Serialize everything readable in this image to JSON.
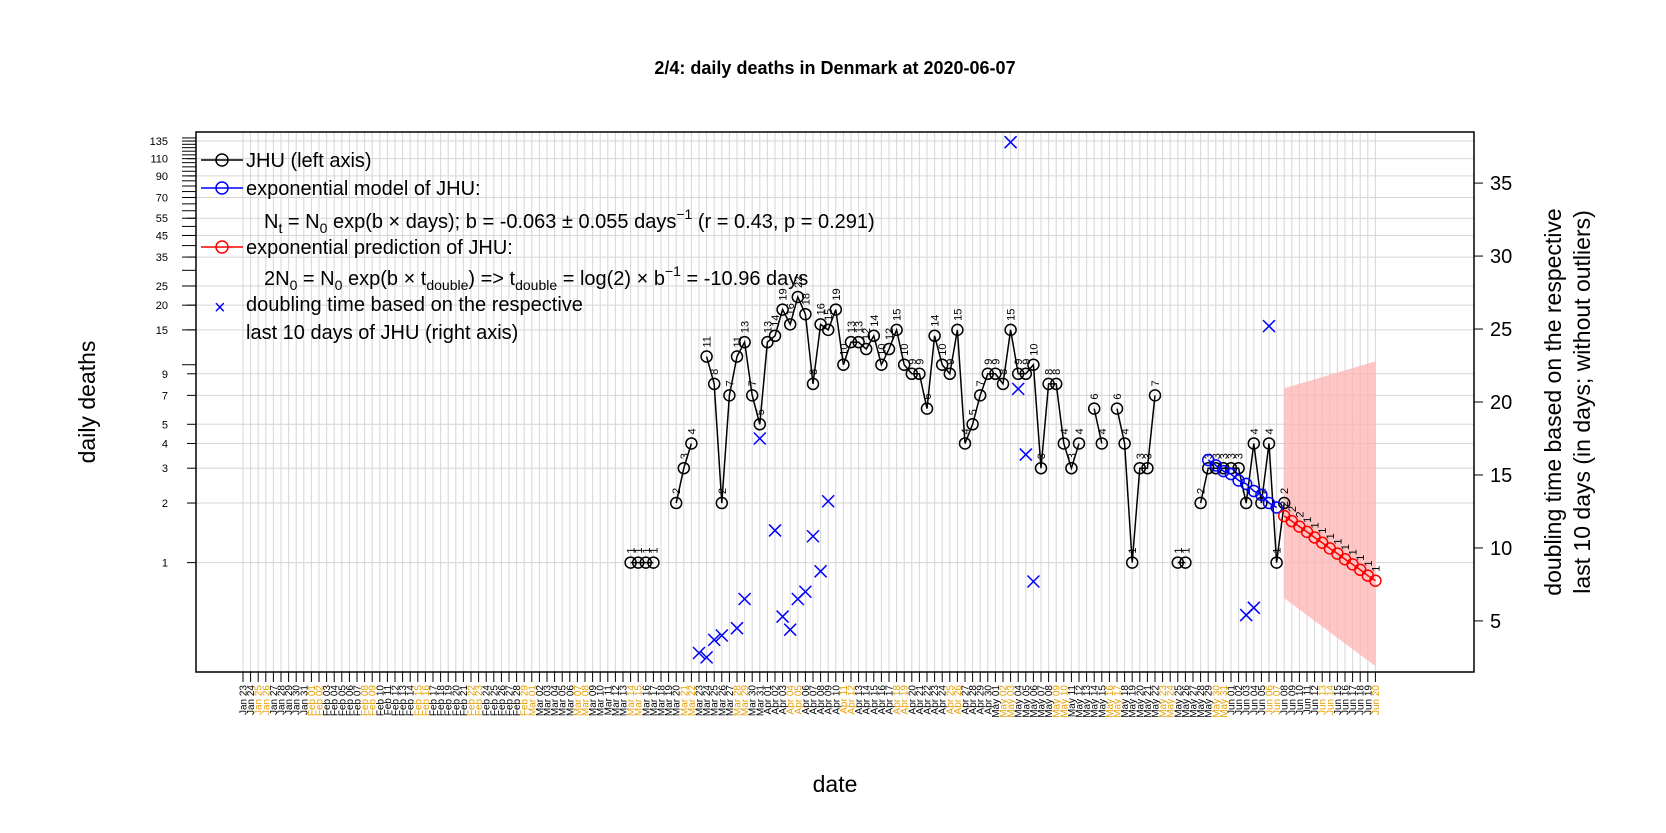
{
  "chart_data": {
    "type": "line",
    "title": "2/4: daily deaths in Denmark at 2020-06-07",
    "xlabel": "date",
    "ylabel_left": "daily deaths",
    "ylabel_right": [
      "doubling time based on the respective",
      "last 10 days (in days; without outliers)"
    ],
    "y_left_scale": "log",
    "y_left_tick_labels": [
      "1",
      "2",
      "3",
      "4",
      "5",
      "7",
      "9",
      "15",
      "20",
      "25",
      "35",
      "45",
      "55",
      "70",
      "90",
      "110",
      "135"
    ],
    "y_left_range": [
      0.28,
      150
    ],
    "y_right_ticks": [
      5,
      10,
      15,
      20,
      25,
      30,
      35
    ],
    "y_right_range": [
      1.5,
      38.5
    ],
    "x_range": [
      "2020-01-23",
      "2020-06-20"
    ],
    "x_start": "2020-01-23",
    "x_dates": [
      "Jan 23",
      "Jan 24",
      "Jan 25",
      "Jan 26",
      "Jan 27",
      "Jan 28",
      "Jan 29",
      "Jan 30",
      "Jan 31",
      "Feb 01",
      "Feb 02",
      "Feb 03",
      "Feb 04",
      "Feb 05",
      "Feb 06",
      "Feb 07",
      "Feb 08",
      "Feb 09",
      "Feb 10",
      "Feb 11",
      "Feb 12",
      "Feb 13",
      "Feb 14",
      "Feb 15",
      "Feb 16",
      "Feb 17",
      "Feb 18",
      "Feb 19",
      "Feb 20",
      "Feb 21",
      "Feb 22",
      "Feb 23",
      "Feb 24",
      "Feb 25",
      "Feb 26",
      "Feb 27",
      "Feb 28",
      "Feb 29",
      "Mar 01",
      "Mar 02",
      "Mar 03",
      "Mar 04",
      "Mar 05",
      "Mar 06",
      "Mar 07",
      "Mar 08",
      "Mar 09",
      "Mar 10",
      "Mar 11",
      "Mar 12",
      "Mar 13",
      "Mar 14",
      "Mar 15",
      "Mar 16",
      "Mar 17",
      "Mar 18",
      "Mar 19",
      "Mar 20",
      "Mar 21",
      "Mar 22",
      "Mar 23",
      "Mar 24",
      "Mar 25",
      "Mar 26",
      "Mar 27",
      "Mar 28",
      "Mar 29",
      "Mar 30",
      "Mar 31",
      "Apr 01",
      "Apr 02",
      "Apr 03",
      "Apr 04",
      "Apr 05",
      "Apr 06",
      "Apr 07",
      "Apr 08",
      "Apr 09",
      "Apr 10",
      "Apr 11",
      "Apr 12",
      "Apr 13",
      "Apr 14",
      "Apr 15",
      "Apr 16",
      "Apr 17",
      "Apr 18",
      "Apr 19",
      "Apr 20",
      "Apr 21",
      "Apr 22",
      "Apr 23",
      "Apr 24",
      "Apr 25",
      "Apr 26",
      "Apr 27",
      "Apr 28",
      "Apr 29",
      "Apr 30",
      "May 01",
      "May 02",
      "May 03",
      "May 04",
      "May 05",
      "May 06",
      "May 07",
      "May 08",
      "May 09",
      "May 10",
      "May 11",
      "May 12",
      "May 13",
      "May 14",
      "May 15",
      "May 16",
      "May 17",
      "May 18",
      "May 19",
      "May 20",
      "May 21",
      "May 22",
      "May 23",
      "May 24",
      "May 25",
      "May 26",
      "May 27",
      "May 28",
      "May 29",
      "May 30",
      "May 31",
      "Jun 01",
      "Jun 02",
      "Jun 03",
      "Jun 04",
      "Jun 05",
      "Jun 06",
      "Jun 07",
      "Jun 08",
      "Jun 09",
      "Jun 10",
      "Jun 11",
      "Jun 12",
      "Jun 13",
      "Jun 14",
      "Jun 15",
      "Jun 16",
      "Jun 17",
      "Jun 18",
      "Jun 19",
      "Jun 20"
    ],
    "x_dates_highlighted": [
      "Jan 25",
      "Jan 26",
      "Feb 01",
      "Feb 02",
      "Feb 08",
      "Feb 09",
      "Feb 15",
      "Feb 16",
      "Feb 22",
      "Feb 23",
      "Feb 29",
      "Mar 01",
      "Mar 07",
      "Mar 08",
      "Mar 14",
      "Mar 15",
      "Mar 21",
      "Mar 22",
      "Mar 28",
      "Mar 29",
      "Apr 04",
      "Apr 05",
      "Apr 11",
      "Apr 12",
      "Apr 18",
      "Apr 19",
      "Apr 25",
      "Apr 26",
      "May 02",
      "May 03",
      "May 09",
      "May 10",
      "May 16",
      "May 17",
      "May 23",
      "May 24",
      "May 30",
      "May 31",
      "Jun 06",
      "Jun 07",
      "Jun 13",
      "Jun 14",
      "Jun 20"
    ],
    "series": [
      {
        "name": "JHU (left axis)",
        "color": "#000000",
        "marker": "circle",
        "points": [
          [
            "2020-03-14",
            1
          ],
          [
            "2020-03-15",
            1
          ],
          [
            "2020-03-16",
            1
          ],
          [
            "2020-03-17",
            1
          ],
          [
            "2020-03-20",
            2
          ],
          [
            "2020-03-21",
            3
          ],
          [
            "2020-03-22",
            4
          ],
          [
            "2020-03-24",
            11
          ],
          [
            "2020-03-25",
            8
          ],
          [
            "2020-03-26",
            2
          ],
          [
            "2020-03-27",
            7
          ],
          [
            "2020-03-28",
            11
          ],
          [
            "2020-03-29",
            13
          ],
          [
            "2020-03-30",
            7
          ],
          [
            "2020-03-31",
            5
          ],
          [
            "2020-04-01",
            13
          ],
          [
            "2020-04-02",
            14
          ],
          [
            "2020-04-03",
            19
          ],
          [
            "2020-04-04",
            16
          ],
          [
            "2020-04-05",
            22
          ],
          [
            "2020-04-06",
            18
          ],
          [
            "2020-04-07",
            8
          ],
          [
            "2020-04-08",
            16
          ],
          [
            "2020-04-09",
            15
          ],
          [
            "2020-04-10",
            19
          ],
          [
            "2020-04-11",
            10
          ],
          [
            "2020-04-12",
            13
          ],
          [
            "2020-04-13",
            13
          ],
          [
            "2020-04-14",
            12
          ],
          [
            "2020-04-15",
            14
          ],
          [
            "2020-04-16",
            10
          ],
          [
            "2020-04-17",
            12
          ],
          [
            "2020-04-18",
            15
          ],
          [
            "2020-04-19",
            10
          ],
          [
            "2020-04-20",
            9
          ],
          [
            "2020-04-21",
            9
          ],
          [
            "2020-04-22",
            6
          ],
          [
            "2020-04-23",
            14
          ],
          [
            "2020-04-24",
            10
          ],
          [
            "2020-04-25",
            9
          ],
          [
            "2020-04-26",
            15
          ],
          [
            "2020-04-27",
            4
          ],
          [
            "2020-04-28",
            5
          ],
          [
            "2020-04-29",
            7
          ],
          [
            "2020-04-30",
            9
          ],
          [
            "2020-05-01",
            9
          ],
          [
            "2020-05-02",
            8
          ],
          [
            "2020-05-03",
            15
          ],
          [
            "2020-05-04",
            9
          ],
          [
            "2020-05-05",
            9
          ],
          [
            "2020-05-06",
            10
          ],
          [
            "2020-05-07",
            3
          ],
          [
            "2020-05-08",
            8
          ],
          [
            "2020-05-09",
            8
          ],
          [
            "2020-05-10",
            4
          ],
          [
            "2020-05-11",
            3
          ],
          [
            "2020-05-12",
            4
          ],
          [
            "2020-05-14",
            6
          ],
          [
            "2020-05-15",
            4
          ],
          [
            "2020-05-17",
            6
          ],
          [
            "2020-05-18",
            4
          ],
          [
            "2020-05-19",
            1
          ],
          [
            "2020-05-20",
            3
          ],
          [
            "2020-05-21",
            3
          ],
          [
            "2020-05-22",
            7
          ],
          [
            "2020-05-25",
            1
          ],
          [
            "2020-05-26",
            1
          ],
          [
            "2020-05-28",
            2
          ],
          [
            "2020-05-29",
            3
          ],
          [
            "2020-05-30",
            3
          ],
          [
            "2020-05-31",
            3
          ],
          [
            "2020-06-01",
            3
          ],
          [
            "2020-06-02",
            3
          ],
          [
            "2020-06-03",
            2
          ],
          [
            "2020-06-04",
            4
          ],
          [
            "2020-06-05",
            2
          ],
          [
            "2020-06-06",
            4
          ],
          [
            "2020-06-07",
            1
          ],
          [
            "2020-06-08",
            2
          ]
        ]
      },
      {
        "name": "exponential model of JHU:",
        "color": "#0000ff",
        "marker": "circle",
        "points": [
          [
            "2020-05-29",
            3.3
          ],
          [
            "2020-05-30",
            3.1
          ],
          [
            "2020-05-31",
            2.9
          ],
          [
            "2020-06-01",
            2.8
          ],
          [
            "2020-06-02",
            2.6
          ],
          [
            "2020-06-03",
            2.5
          ],
          [
            "2020-06-04",
            2.3
          ],
          [
            "2020-06-05",
            2.2
          ],
          [
            "2020-06-06",
            2.0
          ],
          [
            "2020-06-07",
            1.9
          ]
        ]
      },
      {
        "name": "exponential prediction of JHU:",
        "color": "#ff0000",
        "marker": "circle",
        "points": [
          [
            "2020-06-08",
            1.72
          ],
          [
            "2020-06-09",
            1.62
          ],
          [
            "2020-06-10",
            1.52
          ],
          [
            "2020-06-11",
            1.43
          ],
          [
            "2020-06-12",
            1.34
          ],
          [
            "2020-06-13",
            1.26
          ],
          [
            "2020-06-14",
            1.18
          ],
          [
            "2020-06-15",
            1.11
          ],
          [
            "2020-06-16",
            1.04
          ],
          [
            "2020-06-17",
            0.98
          ],
          [
            "2020-06-18",
            0.92
          ],
          [
            "2020-06-19",
            0.86
          ],
          [
            "2020-06-20",
            0.81
          ]
        ],
        "labels": [
          "2",
          "2",
          "2",
          "1",
          "1",
          "1",
          "1",
          "1",
          "1",
          "1",
          "1",
          "1",
          "1"
        ],
        "band": [
          [
            "2020-06-08",
            0.66,
            7.6
          ],
          [
            "2020-06-20",
            0.3,
            10.4
          ]
        ]
      },
      {
        "name": "doubling time based on the respective",
        "name_line2": "last 10 days of JHU (right axis)",
        "color": "#0000ff",
        "marker": "x",
        "axis": "right",
        "points": [
          [
            "2020-03-23",
            2.8
          ],
          [
            "2020-03-24",
            2.5
          ],
          [
            "2020-03-25",
            3.7
          ],
          [
            "2020-03-26",
            4.0
          ],
          [
            "2020-03-28",
            4.5
          ],
          [
            "2020-03-29",
            6.5
          ],
          [
            "2020-03-31",
            17.5
          ],
          [
            "2020-04-02",
            11.2
          ],
          [
            "2020-04-03",
            5.3
          ],
          [
            "2020-04-04",
            4.4
          ],
          [
            "2020-04-05",
            6.5
          ],
          [
            "2020-04-06",
            7.0
          ],
          [
            "2020-04-07",
            10.8
          ],
          [
            "2020-04-08",
            8.4
          ],
          [
            "2020-04-09",
            13.2
          ],
          [
            "2020-05-03",
            37.8
          ],
          [
            "2020-05-04",
            20.9
          ],
          [
            "2020-05-05",
            16.4
          ],
          [
            "2020-05-06",
            7.7
          ],
          [
            "2020-06-03",
            5.4
          ],
          [
            "2020-06-04",
            5.9
          ],
          [
            "2020-06-06",
            25.2
          ]
        ]
      }
    ],
    "legend_position": "top-left",
    "legend": [
      {
        "text": "JHU (left axis)"
      },
      {
        "text": "exponential model of JHU:"
      },
      {
        "text": "exponential prediction of JHU:"
      },
      {
        "text": "doubling time based on the respective"
      },
      {
        "text": "last 10 days of JHU (right axis)"
      }
    ],
    "model_formula": {
      "n": "N",
      "t": "t",
      "zero": "0",
      "mid": " = N",
      "exp_b": " exp(b × days); b = -0.063 ± 0.055 days",
      "neg1": "−1",
      "tail": " (r = 0.43, p = 0.291)"
    },
    "prediction_formula": {
      "two_n": "2N",
      "zero": "0",
      "mid": " = N",
      "exp_b": " exp(b × t",
      "double_sub": "double",
      "arrow": ") => t",
      "log": " = log(2) × b",
      "neg1": "−1",
      "tail": " = -10.96 days"
    },
    "grid": true
  }
}
